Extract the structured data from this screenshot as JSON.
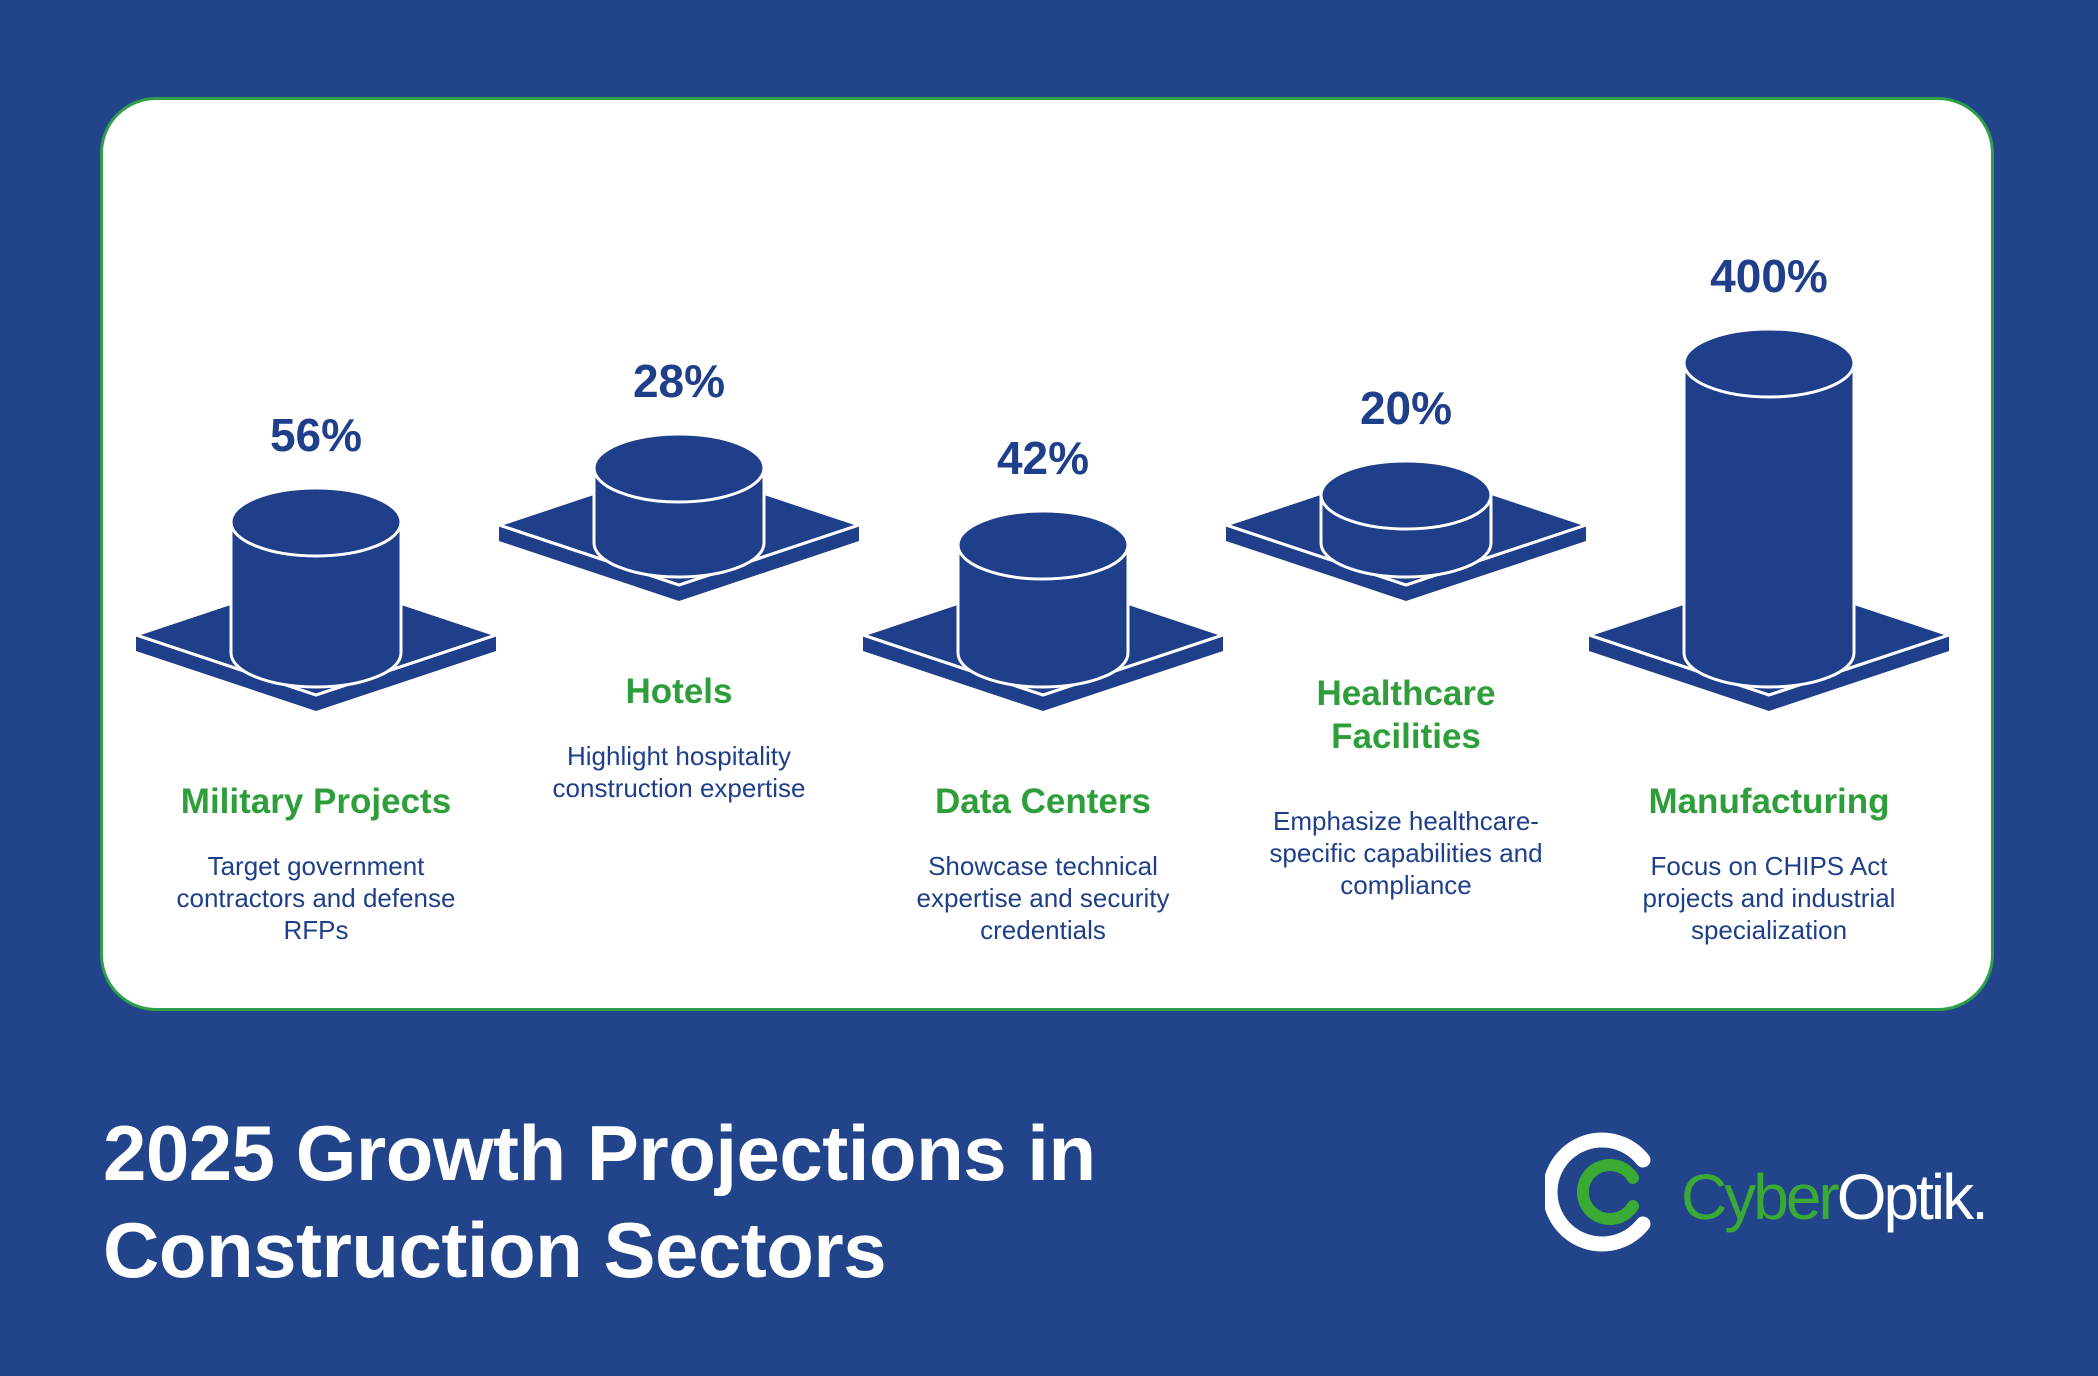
{
  "title": "2025 Growth Projections in Construction Sectors",
  "colors": {
    "background": "#21448b",
    "card": "#ffffff",
    "card_border": "#2e9e4a",
    "cylinder": "#1f3f8a",
    "category_text": "#2e9e3a",
    "description_text": "#1f3f8a",
    "brand_green": "#3aaa35"
  },
  "brand": {
    "name_part1": "Cyber",
    "name_part2": "Optik.",
    "logo_icon": "cyberoptik-ring-logo"
  },
  "chart_data": {
    "type": "bar",
    "style": "3d-cylinders-on-plates",
    "categories": [
      "Military Projects",
      "Hotels",
      "Data Centers",
      "Healthcare Facilities",
      "Manufacturing"
    ],
    "values": [
      56,
      28,
      42,
      20,
      400
    ],
    "value_labels": [
      "56%",
      "28%",
      "42%",
      "20%",
      "400%"
    ],
    "descriptions": [
      "Target government contractors and defense RFPs",
      "Highlight hospitality construction expertise",
      "Showcase technical expertise and security credentials",
      "Emphasize healthcare-specific capabilities and compliance",
      "Focus on CHIPS Act projects and industrial specialization"
    ],
    "unit": "%",
    "grid": false,
    "legend": "none"
  }
}
